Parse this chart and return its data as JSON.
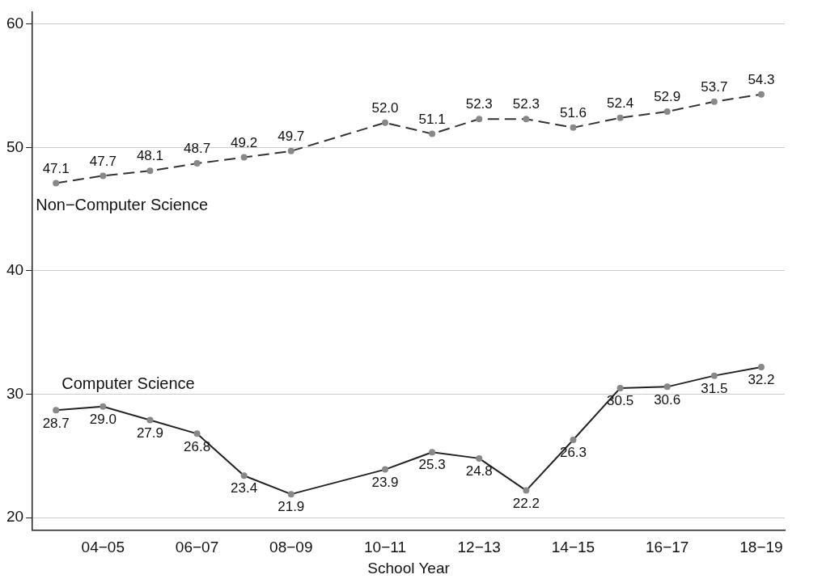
{
  "chart_data": {
    "type": "line",
    "xlabel": "School Year",
    "categories": [
      null,
      "04−05",
      null,
      "06−07",
      null,
      "08−09",
      null,
      "10−11",
      null,
      "12−13",
      null,
      "14−15",
      null,
      "16−17",
      null,
      "18−19"
    ],
    "series": [
      {
        "name": "Non−Computer Science",
        "color": "#333333",
        "line_style": "dashed",
        "values": [
          47.1,
          47.7,
          48.1,
          48.7,
          49.2,
          49.7,
          null,
          52.0,
          51.1,
          52.3,
          52.3,
          51.6,
          52.4,
          52.9,
          53.7,
          54.3
        ],
        "value_labels": [
          "47.1",
          "47.7",
          "48.1",
          "48.7",
          "49.2",
          "49.7",
          null,
          "52.0",
          "51.1",
          "52.3",
          "52.3",
          "51.6",
          "52.4",
          "52.9",
          "53.7",
          "54.3"
        ]
      },
      {
        "name": "Computer Science",
        "color": "#222222",
        "line_style": "solid",
        "values": [
          28.7,
          29.0,
          27.9,
          26.8,
          23.4,
          21.9,
          null,
          23.9,
          25.3,
          24.8,
          22.2,
          26.3,
          30.5,
          30.6,
          31.5,
          32.2
        ],
        "value_labels": [
          "28.7",
          "29.0",
          "27.9",
          "26.8",
          "23.4",
          "21.9",
          null,
          "23.9",
          "25.3",
          "24.8",
          "22.2",
          "26.3",
          "30.5",
          "30.6",
          "31.5",
          "32.2"
        ]
      }
    ],
    "ylim": [
      19,
      61
    ],
    "yticks": [
      20,
      30,
      40,
      50,
      60
    ],
    "grid": "y",
    "legend": false,
    "marker": "circle"
  }
}
